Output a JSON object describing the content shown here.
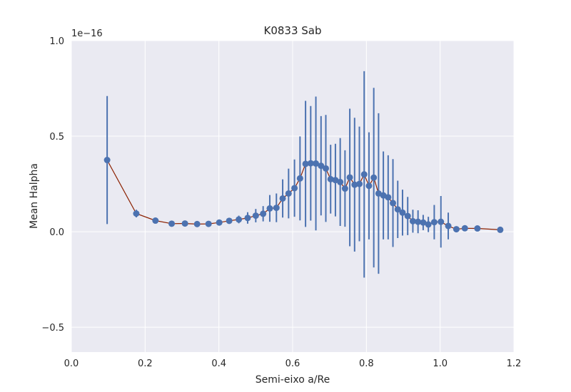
{
  "chart_data": {
    "type": "line",
    "title": "K0833 Sab",
    "xlabel": "Semi-eixo a/Re",
    "ylabel": "Mean Halpha",
    "y_offset_label": "1e−16",
    "xlim": [
      0.0,
      1.2
    ],
    "ylim": [
      -0.63,
      1.0
    ],
    "xticks": [
      0.0,
      0.2,
      0.4,
      0.6,
      0.8,
      1.0,
      1.2
    ],
    "xtick_labels": [
      "0.0",
      "0.2",
      "0.4",
      "0.6",
      "0.8",
      "1.0",
      "1.2"
    ],
    "yticks": [
      -0.5,
      0.0,
      0.5,
      1.0
    ],
    "ytick_labels": [
      "−0.5",
      "0.0",
      "0.5",
      "1.0"
    ],
    "grid": true,
    "colors": {
      "background": "#eaeaf2",
      "grid": "#ffffff",
      "line": "#8b2000",
      "marker": "#4c72b0",
      "errorbar": "#4c72b0"
    },
    "series": [
      {
        "x": [
          0.097,
          0.176,
          0.228,
          0.272,
          0.308,
          0.341,
          0.372,
          0.401,
          0.428,
          0.454,
          0.478,
          0.5,
          0.52,
          0.538,
          0.556,
          0.573,
          0.589,
          0.605,
          0.62,
          0.635,
          0.649,
          0.663,
          0.677,
          0.69,
          0.703,
          0.716,
          0.729,
          0.742,
          0.755,
          0.768,
          0.781,
          0.794,
          0.807,
          0.82,
          0.833,
          0.846,
          0.859,
          0.872,
          0.885,
          0.898,
          0.912,
          0.926,
          0.94,
          0.954,
          0.968,
          0.984,
          1.002,
          1.022,
          1.044,
          1.067,
          1.101,
          1.163
        ],
        "y": [
          0.375,
          0.095,
          0.058,
          0.042,
          0.043,
          0.04,
          0.041,
          0.048,
          0.057,
          0.064,
          0.072,
          0.084,
          0.094,
          0.122,
          0.125,
          0.174,
          0.2,
          0.228,
          0.279,
          0.355,
          0.358,
          0.357,
          0.345,
          0.331,
          0.275,
          0.27,
          0.26,
          0.226,
          0.284,
          0.246,
          0.25,
          0.3,
          0.24,
          0.283,
          0.2,
          0.19,
          0.18,
          0.15,
          0.117,
          0.1,
          0.082,
          0.055,
          0.052,
          0.048,
          0.038,
          0.05,
          0.052,
          0.03,
          0.013,
          0.018,
          0.017,
          0.01
        ],
        "yerr": [
          0.335,
          0.02,
          0.012,
          0.008,
          0.008,
          0.006,
          0.006,
          0.01,
          0.015,
          0.02,
          0.03,
          0.035,
          0.04,
          0.07,
          0.075,
          0.1,
          0.13,
          0.15,
          0.22,
          0.33,
          0.3,
          0.35,
          0.26,
          0.28,
          0.18,
          0.19,
          0.23,
          0.2,
          0.36,
          0.35,
          0.3,
          0.54,
          0.28,
          0.47,
          0.42,
          0.23,
          0.22,
          0.23,
          0.15,
          0.12,
          0.1,
          0.06,
          0.06,
          0.04,
          0.04,
          0.09,
          0.135,
          0.07,
          0.0,
          0.0,
          0.0,
          0.0
        ]
      }
    ]
  }
}
